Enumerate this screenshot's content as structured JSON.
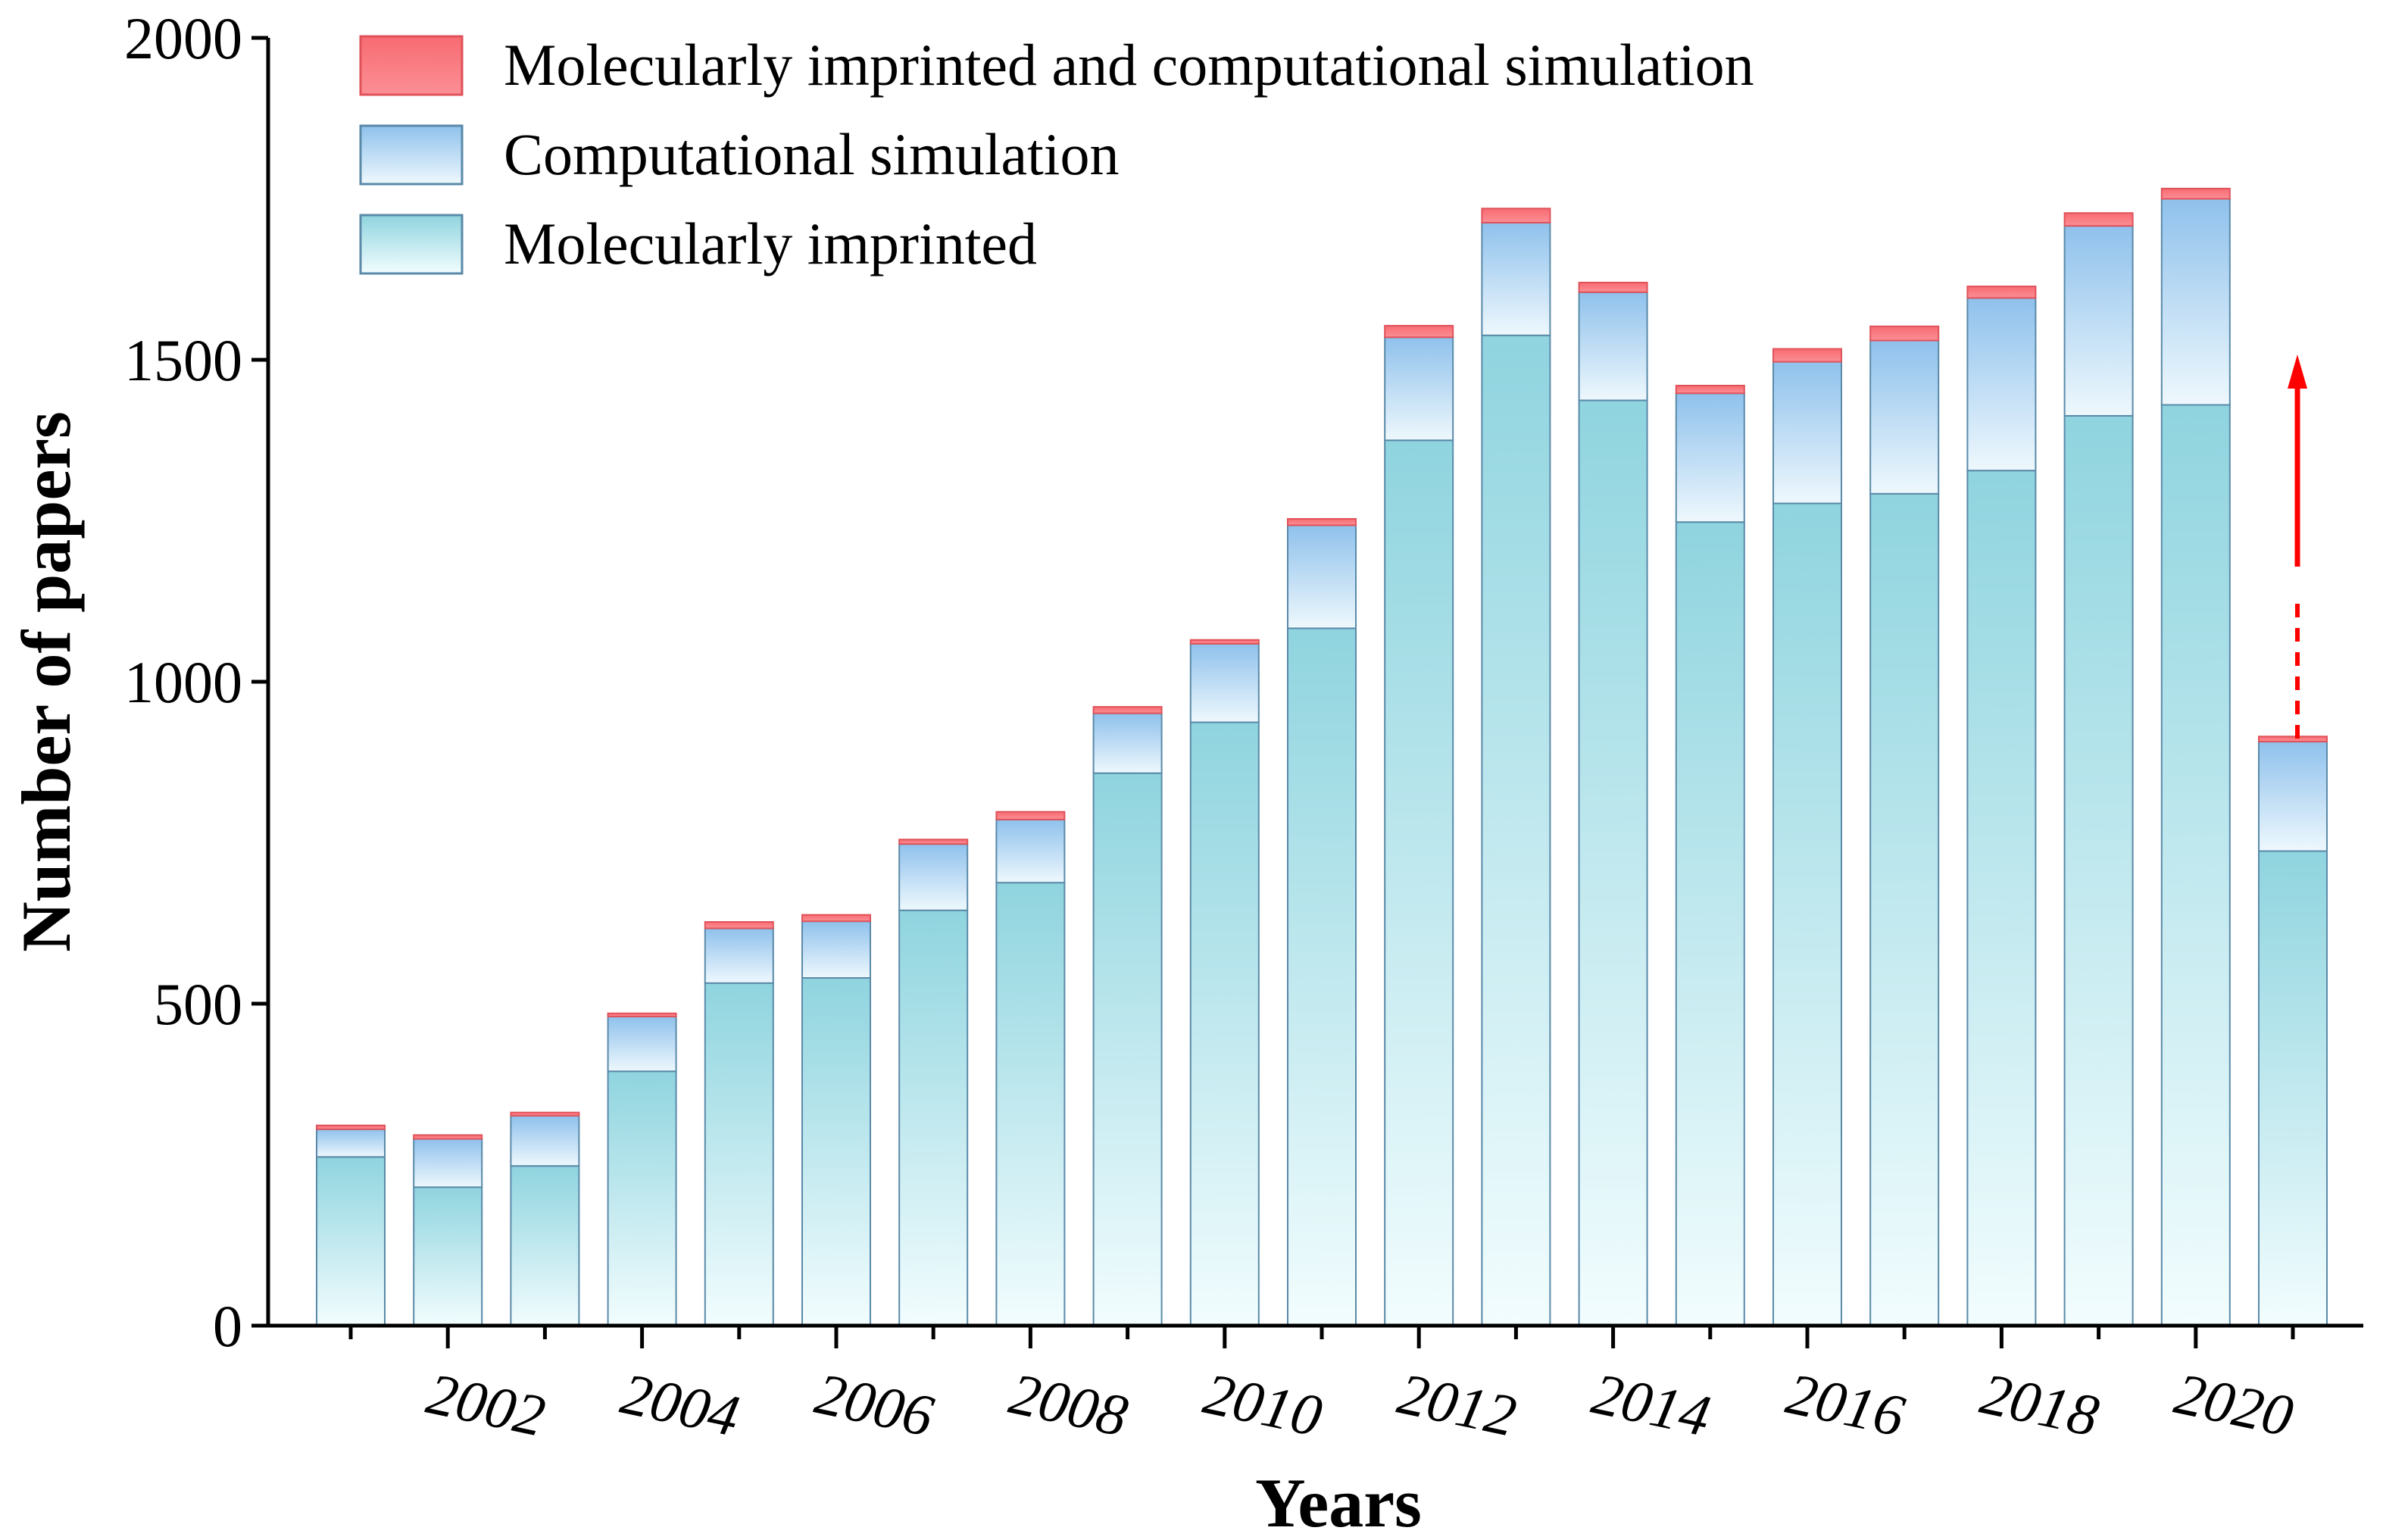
{
  "chart_data": {
    "type": "bar",
    "stacked": true,
    "title": "",
    "xlabel": "Years",
    "ylabel": "Number of papers",
    "ylim": [
      0,
      2000
    ],
    "yticks": [
      0,
      500,
      1000,
      1500,
      2000
    ],
    "categories": [
      2001,
      2002,
      2003,
      2004,
      2005,
      2006,
      2007,
      2008,
      2009,
      2010,
      2011,
      2012,
      2013,
      2014,
      2015,
      2016,
      2017,
      2018,
      2019,
      2020,
      2021
    ],
    "xtick_labels": [
      "2002",
      "2004",
      "2006",
      "2008",
      "2010",
      "2012",
      "2014",
      "2016",
      "2018",
      "2020"
    ],
    "legend_position": "top-left",
    "series": [
      {
        "name": "Molecularly imprinted",
        "color": "#8fd4df",
        "values": [
          262,
          215,
          248,
          395,
          532,
          540,
          645,
          688,
          858,
          937,
          1083,
          1375,
          1538,
          1437,
          1248,
          1277,
          1292,
          1328,
          1413,
          1430,
          737
        ]
      },
      {
        "name": "Computational simulation",
        "color": "#8fc1ec",
        "values": [
          43,
          75,
          78,
          85,
          85,
          88,
          103,
          98,
          93,
          122,
          160,
          160,
          175,
          168,
          200,
          220,
          238,
          268,
          295,
          320,
          170
        ]
      },
      {
        "name": "Molecularly imprinted and computational simulation",
        "color": "#f86b72",
        "values": [
          6,
          6,
          5,
          5,
          10,
          10,
          7,
          12,
          10,
          6,
          10,
          18,
          22,
          15,
          12,
          20,
          22,
          18,
          20,
          16,
          8
        ]
      }
    ],
    "annotation": "red upward arrow above 2021 bar (dashed lower segment)"
  }
}
